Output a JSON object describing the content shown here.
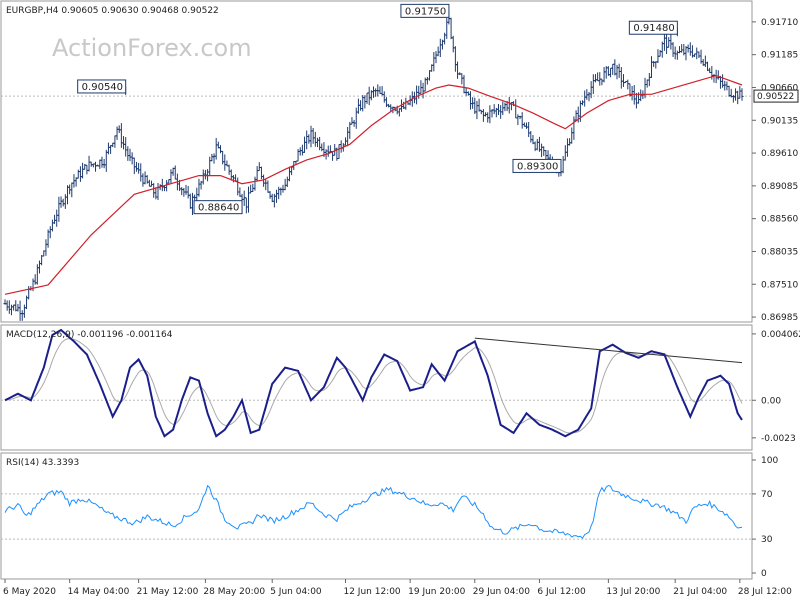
{
  "chart_data": [
    {
      "type": "candlestick",
      "symbol": "EURGBP",
      "timeframe": "H4",
      "header": "EURGBP,H4  0.90605 0.90630 0.90468 0.90522",
      "watermark": "ActionForex.com",
      "ylim": [
        0.8697,
        0.9198
      ],
      "y_ticks": [
        "0.91710",
        "0.91185",
        "0.90660",
        "0.90135",
        "0.89610",
        "0.89085",
        "0.88560",
        "0.88035",
        "0.87510",
        "0.86985"
      ],
      "current_price": "0.90522",
      "bar_color": "#1e3a6e",
      "ma_color": "#d0202a",
      "anchors": [
        [
          0,
          0.872
        ],
        [
          8,
          0.871
        ],
        [
          14,
          0.876
        ],
        [
          22,
          0.885
        ],
        [
          30,
          0.891
        ],
        [
          38,
          0.894
        ],
        [
          46,
          0.895
        ],
        [
          52,
          0.9
        ],
        [
          58,
          0.895
        ],
        [
          64,
          0.892
        ],
        [
          70,
          0.8895
        ],
        [
          78,
          0.893
        ],
        [
          86,
          0.888
        ],
        [
          92,
          0.892
        ],
        [
          98,
          0.897
        ],
        [
          106,
          0.892
        ],
        [
          112,
          0.888
        ],
        [
          118,
          0.8935
        ],
        [
          124,
          0.889
        ],
        [
          130,
          0.891
        ],
        [
          136,
          0.896
        ],
        [
          142,
          0.899
        ],
        [
          148,
          0.897
        ],
        [
          154,
          0.896
        ],
        [
          160,
          0.9
        ],
        [
          166,
          0.9045
        ],
        [
          172,
          0.906
        ],
        [
          178,
          0.904
        ],
        [
          184,
          0.903
        ],
        [
          190,
          0.905
        ],
        [
          196,
          0.9075
        ],
        [
          202,
          0.914
        ],
        [
          206,
          0.9172
        ],
        [
          210,
          0.909
        ],
        [
          216,
          0.904
        ],
        [
          222,
          0.902
        ],
        [
          228,
          0.903
        ],
        [
          234,
          0.904
        ],
        [
          240,
          0.901
        ],
        [
          246,
          0.8975
        ],
        [
          252,
          0.895
        ],
        [
          258,
          0.8935
        ],
        [
          264,
          0.901
        ],
        [
          270,
          0.906
        ],
        [
          276,
          0.908
        ],
        [
          282,
          0.91
        ],
        [
          288,
          0.907
        ],
        [
          294,
          0.904
        ],
        [
          300,
          0.91
        ],
        [
          306,
          0.914
        ],
        [
          312,
          0.912
        ],
        [
          318,
          0.9125
        ],
        [
          324,
          0.911
        ],
        [
          330,
          0.908
        ],
        [
          336,
          0.906
        ],
        [
          342,
          0.9052
        ]
      ],
      "ma_points": [
        [
          0,
          0.8735
        ],
        [
          20,
          0.875
        ],
        [
          40,
          0.883
        ],
        [
          60,
          0.8895
        ],
        [
          80,
          0.8915
        ],
        [
          90,
          0.8925
        ],
        [
          100,
          0.8925
        ],
        [
          110,
          0.8912
        ],
        [
          120,
          0.8918
        ],
        [
          130,
          0.8935
        ],
        [
          140,
          0.895
        ],
        [
          150,
          0.896
        ],
        [
          160,
          0.8975
        ],
        [
          170,
          0.9005
        ],
        [
          180,
          0.903
        ],
        [
          190,
          0.905
        ],
        [
          200,
          0.9065
        ],
        [
          206,
          0.907
        ],
        [
          215,
          0.9065
        ],
        [
          225,
          0.9052
        ],
        [
          235,
          0.904
        ],
        [
          245,
          0.9025
        ],
        [
          255,
          0.9008
        ],
        [
          260,
          0.9
        ],
        [
          270,
          0.9025
        ],
        [
          280,
          0.9045
        ],
        [
          290,
          0.9055
        ],
        [
          300,
          0.9055
        ],
        [
          310,
          0.9065
        ],
        [
          320,
          0.9075
        ],
        [
          330,
          0.9085
        ],
        [
          342,
          0.907
        ]
      ],
      "annotations": [
        {
          "text": "0.90540",
          "bar": 56,
          "price": 0.9054
        },
        {
          "text": "0.88640",
          "bar": 110,
          "price": 0.8864
        },
        {
          "text": "0.91750",
          "bar": 206,
          "price": 0.9175
        },
        {
          "text": "0.89300",
          "bar": 258,
          "price": 0.893
        },
        {
          "text": "0.91480",
          "bar": 312,
          "price": 0.9148
        }
      ],
      "x_labels": [
        {
          "text": "6 May 2020",
          "bar": 0
        },
        {
          "text": "14 May 04:00",
          "bar": 30
        },
        {
          "text": "21 May 12:00",
          "bar": 62
        },
        {
          "text": "28 May 20:00",
          "bar": 93
        },
        {
          "text": "5 Jun 04:00",
          "bar": 124
        },
        {
          "text": "12 Jun 12:00",
          "bar": 158
        },
        {
          "text": "19 Jun 20:00",
          "bar": 188
        },
        {
          "text": "29 Jun 04:00",
          "bar": 218
        },
        {
          "text": "6 Jul 12:00",
          "bar": 248
        },
        {
          "text": "13 Jul 20:00",
          "bar": 280
        },
        {
          "text": "21 Jul 04:00",
          "bar": 311
        },
        {
          "text": "28 Jul 12:00",
          "bar": 341
        }
      ]
    },
    {
      "type": "line",
      "name": "MACD",
      "header": "MACD(12,26,9) -0.001196 -0.001164",
      "ylim": [
        -0.0028,
        0.0043
      ],
      "y_ticks": [
        {
          "text": "0.004062",
          "value": 0.004062
        },
        {
          "text": "0.00",
          "value": 0.0
        },
        {
          "text": "-0.0023",
          "value": -0.0023
        }
      ],
      "zero_label_value": "0.00",
      "line_color": "#1a1f8c",
      "signal_color": "#aaaaaa",
      "trendline": [
        [
          218,
          0.0038
        ],
        [
          342,
          0.0023
        ]
      ],
      "points": [
        [
          0,
          0.0
        ],
        [
          6,
          0.0004
        ],
        [
          12,
          0.0
        ],
        [
          18,
          0.002
        ],
        [
          22,
          0.004
        ],
        [
          26,
          0.0043
        ],
        [
          32,
          0.0036
        ],
        [
          38,
          0.0028
        ],
        [
          44,
          0.001
        ],
        [
          50,
          -0.001
        ],
        [
          54,
          0.0
        ],
        [
          58,
          0.002
        ],
        [
          62,
          0.0025
        ],
        [
          66,
          0.0015
        ],
        [
          70,
          -0.001
        ],
        [
          74,
          -0.0022
        ],
        [
          78,
          -0.0018
        ],
        [
          82,
          0.0
        ],
        [
          86,
          0.0014
        ],
        [
          90,
          0.0012
        ],
        [
          94,
          -0.0008
        ],
        [
          98,
          -0.0022
        ],
        [
          102,
          -0.0018
        ],
        [
          106,
          -0.001
        ],
        [
          110,
          0.0
        ],
        [
          114,
          -0.002
        ],
        [
          118,
          -0.0018
        ],
        [
          124,
          0.001
        ],
        [
          130,
          0.002
        ],
        [
          136,
          0.0018
        ],
        [
          142,
          0.0
        ],
        [
          148,
          0.0008
        ],
        [
          154,
          0.0026
        ],
        [
          158,
          0.002
        ],
        [
          162,
          0.001
        ],
        [
          166,
          0.0
        ],
        [
          170,
          0.0014
        ],
        [
          176,
          0.0028
        ],
        [
          182,
          0.0024
        ],
        [
          188,
          0.0006
        ],
        [
          194,
          0.0008
        ],
        [
          198,
          0.0022
        ],
        [
          204,
          0.0012
        ],
        [
          210,
          0.003
        ],
        [
          218,
          0.0036
        ],
        [
          224,
          0.0015
        ],
        [
          230,
          -0.0015
        ],
        [
          236,
          -0.002
        ],
        [
          242,
          -0.0008
        ],
        [
          248,
          -0.0015
        ],
        [
          254,
          -0.0018
        ],
        [
          260,
          -0.0022
        ],
        [
          266,
          -0.0018
        ],
        [
          272,
          -0.0005
        ],
        [
          276,
          0.003
        ],
        [
          282,
          0.0034
        ],
        [
          288,
          0.0029
        ],
        [
          294,
          0.0026
        ],
        [
          300,
          0.003
        ],
        [
          306,
          0.0028
        ],
        [
          312,
          0.0008
        ],
        [
          318,
          -0.001
        ],
        [
          322,
          0.0002
        ],
        [
          326,
          0.0012
        ],
        [
          332,
          0.0015
        ],
        [
          336,
          0.001
        ],
        [
          340,
          -0.0008
        ],
        [
          342,
          -0.0012
        ]
      ]
    },
    {
      "type": "line",
      "name": "RSI",
      "header": "RSI(14) 43.3393",
      "ylim": [
        0,
        100
      ],
      "y_ticks": [
        {
          "text": "100",
          "value": 100
        },
        {
          "text": "70",
          "value": 70
        },
        {
          "text": "30",
          "value": 30
        },
        {
          "text": "0",
          "value": 0
        }
      ],
      "levels": [
        30,
        70
      ],
      "line_color": "#1e90ff",
      "points": [
        [
          0,
          55
        ],
        [
          6,
          60
        ],
        [
          10,
          50
        ],
        [
          14,
          58
        ],
        [
          20,
          70
        ],
        [
          26,
          72
        ],
        [
          30,
          62
        ],
        [
          36,
          66
        ],
        [
          42,
          60
        ],
        [
          48,
          52
        ],
        [
          54,
          48
        ],
        [
          60,
          44
        ],
        [
          66,
          50
        ],
        [
          72,
          46
        ],
        [
          78,
          42
        ],
        [
          84,
          50
        ],
        [
          90,
          56
        ],
        [
          94,
          78
        ],
        [
          98,
          64
        ],
        [
          102,
          48
        ],
        [
          108,
          40
        ],
        [
          114,
          44
        ],
        [
          118,
          52
        ],
        [
          124,
          46
        ],
        [
          130,
          50
        ],
        [
          136,
          56
        ],
        [
          142,
          62
        ],
        [
          148,
          52
        ],
        [
          154,
          48
        ],
        [
          160,
          58
        ],
        [
          166,
          64
        ],
        [
          172,
          70
        ],
        [
          178,
          74
        ],
        [
          184,
          70
        ],
        [
          190,
          66
        ],
        [
          196,
          60
        ],
        [
          202,
          62
        ],
        [
          208,
          56
        ],
        [
          212,
          68
        ],
        [
          218,
          60
        ],
        [
          222,
          52
        ],
        [
          226,
          40
        ],
        [
          232,
          36
        ],
        [
          238,
          40
        ],
        [
          244,
          44
        ],
        [
          250,
          38
        ],
        [
          256,
          36
        ],
        [
          262,
          34
        ],
        [
          268,
          32
        ],
        [
          272,
          40
        ],
        [
          276,
          72
        ],
        [
          280,
          76
        ],
        [
          286,
          70
        ],
        [
          292,
          66
        ],
        [
          298,
          62
        ],
        [
          304,
          60
        ],
        [
          310,
          54
        ],
        [
          316,
          46
        ],
        [
          320,
          58
        ],
        [
          326,
          62
        ],
        [
          332,
          56
        ],
        [
          336,
          50
        ],
        [
          340,
          40
        ],
        [
          342,
          43
        ]
      ]
    }
  ]
}
